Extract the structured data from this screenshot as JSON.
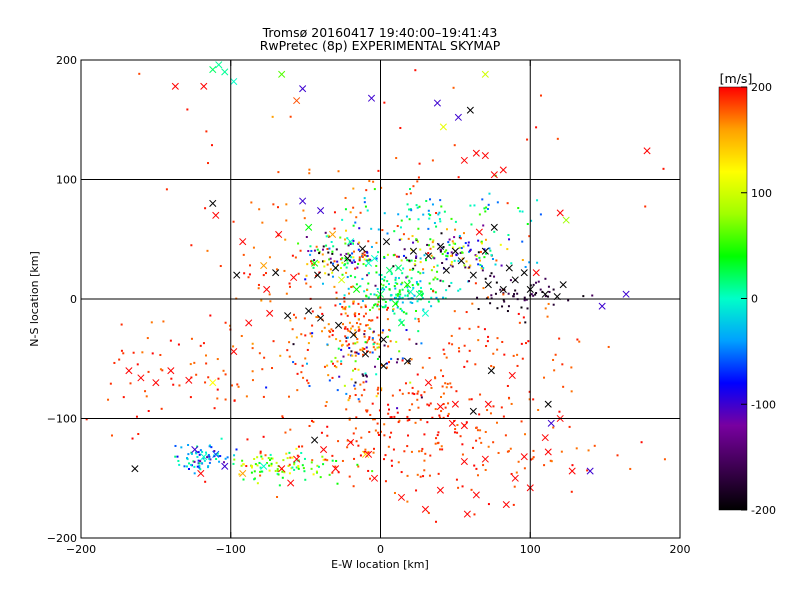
{
  "chart_data": {
    "type": "scatter",
    "title_line1": "Tromsø 20160417 19:40:00–19:41:43",
    "title_line2": "RwPretec (8p) EXPERIMENTAL SKYMAP",
    "xlabel": "E-W location [km]",
    "ylabel": "N-S location [km]",
    "xlim": [
      -200,
      200
    ],
    "ylim": [
      -200,
      200
    ],
    "xticks": [
      -200,
      -100,
      0,
      100,
      200
    ],
    "yticks": [
      -200,
      -100,
      0,
      100,
      200
    ],
    "grid": true,
    "colorbar": {
      "label": "[m/s]",
      "range": [
        -200,
        200
      ],
      "ticks": [
        200,
        100,
        0,
        -100,
        -200
      ],
      "colors": [
        "#000000",
        "#3c0050",
        "#7800a0",
        "#0000ff",
        "#00a0ff",
        "#00ffc8",
        "#00ff00",
        "#a0ff00",
        "#ffff00",
        "#ffa000",
        "#ff0000"
      ]
    },
    "series": [
      {
        "name": "velocity samples (x markers)",
        "marker": "x",
        "points": [
          [
            -137,
            178,
            200
          ],
          [
            -118,
            178,
            200
          ],
          [
            -112,
            192,
            20
          ],
          [
            -108,
            196,
            10
          ],
          [
            -104,
            190,
            10
          ],
          [
            -98,
            182,
            0
          ],
          [
            -66,
            188,
            60
          ],
          [
            -52,
            176,
            -100
          ],
          [
            -56,
            166,
            180
          ],
          [
            -6,
            168,
            -100
          ],
          [
            38,
            164,
            -100
          ],
          [
            52,
            152,
            -100
          ],
          [
            60,
            158,
            -200
          ],
          [
            70,
            188,
            100
          ],
          [
            42,
            144,
            110
          ],
          [
            56,
            116,
            200
          ],
          [
            64,
            122,
            200
          ],
          [
            70,
            120,
            200
          ],
          [
            76,
            104,
            200
          ],
          [
            82,
            108,
            200
          ],
          [
            178,
            124,
            200
          ],
          [
            -112,
            80,
            -200
          ],
          [
            -110,
            70,
            200
          ],
          [
            -92,
            48,
            200
          ],
          [
            -78,
            28,
            160
          ],
          [
            -70,
            22,
            -200
          ],
          [
            -58,
            18,
            200
          ],
          [
            -42,
            20,
            -200
          ],
          [
            -30,
            26,
            -200
          ],
          [
            -22,
            34,
            -200
          ],
          [
            -12,
            42,
            -200
          ],
          [
            4,
            48,
            -200
          ],
          [
            22,
            40,
            -200
          ],
          [
            32,
            36,
            -200
          ],
          [
            40,
            44,
            -200
          ],
          [
            54,
            32,
            -200
          ],
          [
            62,
            20,
            -200
          ],
          [
            72,
            12,
            -200
          ],
          [
            82,
            8,
            -200
          ],
          [
            90,
            16,
            -200
          ],
          [
            100,
            8,
            -200
          ],
          [
            110,
            4,
            -200
          ],
          [
            118,
            2,
            -200
          ],
          [
            122,
            12,
            -200
          ],
          [
            148,
            -6,
            -100
          ],
          [
            164,
            4,
            -100
          ],
          [
            124,
            66,
            80
          ],
          [
            120,
            72,
            200
          ],
          [
            -68,
            54,
            200
          ],
          [
            -48,
            60,
            40
          ],
          [
            -40,
            74,
            -100
          ],
          [
            -52,
            82,
            -100
          ],
          [
            -32,
            54,
            160
          ],
          [
            -20,
            48,
            0
          ],
          [
            -8,
            30,
            0
          ],
          [
            6,
            24,
            20
          ],
          [
            18,
            12,
            40
          ],
          [
            26,
            4,
            20
          ],
          [
            30,
            -12,
            0
          ],
          [
            14,
            -20,
            20
          ],
          [
            2,
            -34,
            -200
          ],
          [
            -10,
            -46,
            -200
          ],
          [
            -18,
            -30,
            -200
          ],
          [
            -28,
            -22,
            -200
          ],
          [
            -40,
            -16,
            -200
          ],
          [
            -48,
            -10,
            -200
          ],
          [
            -62,
            -14,
            -200
          ],
          [
            -74,
            -12,
            200
          ],
          [
            -88,
            -20,
            200
          ],
          [
            -98,
            -44,
            200
          ],
          [
            -112,
            -70,
            120
          ],
          [
            -128,
            -68,
            200
          ],
          [
            -140,
            -60,
            200
          ],
          [
            -168,
            -60,
            200
          ],
          [
            -160,
            -66,
            200
          ],
          [
            -150,
            -70,
            200
          ],
          [
            2,
            -56,
            -200
          ],
          [
            18,
            -52,
            -200
          ],
          [
            32,
            -70,
            200
          ],
          [
            40,
            -90,
            200
          ],
          [
            50,
            -88,
            200
          ],
          [
            62,
            -94,
            -200
          ],
          [
            56,
            -106,
            200
          ],
          [
            72,
            -88,
            200
          ],
          [
            74,
            -60,
            -200
          ],
          [
            88,
            -64,
            200
          ],
          [
            112,
            -88,
            -200
          ],
          [
            114,
            -104,
            -100
          ],
          [
            120,
            -100,
            200
          ],
          [
            112,
            -128,
            200
          ],
          [
            128,
            -144,
            200
          ],
          [
            140,
            -144,
            -100
          ],
          [
            96,
            -132,
            200
          ],
          [
            90,
            -150,
            200
          ],
          [
            100,
            -158,
            200
          ],
          [
            84,
            -172,
            200
          ],
          [
            58,
            -180,
            200
          ],
          [
            40,
            -160,
            200
          ],
          [
            30,
            -176,
            200
          ],
          [
            14,
            -166,
            200
          ],
          [
            -4,
            -150,
            200
          ],
          [
            -10,
            -130,
            140
          ],
          [
            -20,
            -120,
            200
          ],
          [
            -38,
            -126,
            200
          ],
          [
            -44,
            -118,
            -200
          ],
          [
            -56,
            -134,
            200
          ],
          [
            -66,
            -142,
            200
          ],
          [
            -78,
            -140,
            0
          ],
          [
            -92,
            -146,
            160
          ],
          [
            -104,
            -140,
            -100
          ],
          [
            -110,
            -130,
            -60
          ],
          [
            -118,
            -132,
            0
          ],
          [
            -124,
            -126,
            -100
          ],
          [
            -164,
            -142,
            -200
          ],
          [
            -120,
            -146,
            200
          ],
          [
            -60,
            -154,
            200
          ],
          [
            -30,
            -142,
            200
          ],
          [
            -8,
            -130,
            200
          ],
          [
            48,
            -104,
            200
          ],
          [
            56,
            -136,
            200
          ],
          [
            70,
            -134,
            200
          ],
          [
            64,
            -164,
            200
          ],
          [
            110,
            -116,
            200
          ],
          [
            -44,
            30,
            40
          ],
          [
            -4,
            34,
            0
          ],
          [
            12,
            26,
            20
          ],
          [
            0,
            4,
            20
          ],
          [
            10,
            -4,
            40
          ],
          [
            20,
            6,
            0
          ],
          [
            -16,
            8,
            40
          ],
          [
            -26,
            16,
            100
          ],
          [
            44,
            24,
            -200
          ],
          [
            50,
            40,
            -200
          ],
          [
            70,
            40,
            -200
          ],
          [
            86,
            26,
            -200
          ],
          [
            96,
            22,
            -200
          ],
          [
            104,
            22,
            200
          ],
          [
            66,
            56,
            200
          ],
          [
            76,
            60,
            -200
          ],
          [
            -76,
            8,
            200
          ],
          [
            -96,
            20,
            -200
          ]
        ]
      },
      {
        "name": "velocity samples (dot markers)",
        "marker": "dot",
        "clusters": [
          {
            "cx": -25,
            "cy": 35,
            "sx": 14,
            "sy": 12,
            "n": 130,
            "v": [
              -200,
              200
            ]
          },
          {
            "cx": 45,
            "cy": 38,
            "sx": 20,
            "sy": 10,
            "n": 150,
            "v": [
              -200,
              200
            ]
          },
          {
            "cx": 12,
            "cy": 5,
            "sx": 16,
            "sy": 10,
            "n": 160,
            "v": [
              -40,
              60
            ]
          },
          {
            "cx": -20,
            "cy": -28,
            "sx": 15,
            "sy": 14,
            "n": 110,
            "v": [
              150,
              200
            ]
          },
          {
            "cx": -10,
            "cy": -50,
            "sx": 20,
            "sy": 16,
            "n": 80,
            "v": [
              -200,
              200
            ]
          },
          {
            "cx": 15,
            "cy": -85,
            "sx": 40,
            "sy": 25,
            "n": 140,
            "v": [
              170,
              200
            ]
          },
          {
            "cx": -120,
            "cy": -132,
            "sx": 10,
            "sy": 6,
            "n": 70,
            "v": [
              -120,
              20
            ]
          },
          {
            "cx": -65,
            "cy": -140,
            "sx": 20,
            "sy": 6,
            "n": 90,
            "v": [
              0,
              140
            ]
          },
          {
            "cx": 30,
            "cy": -130,
            "sx": 55,
            "sy": 20,
            "n": 150,
            "v": [
              170,
              200
            ]
          },
          {
            "cx": -130,
            "cy": -60,
            "sx": 40,
            "sy": 22,
            "n": 80,
            "v": [
              170,
              200
            ]
          },
          {
            "cx": 35,
            "cy": 70,
            "sx": 30,
            "sy": 10,
            "n": 70,
            "v": [
              -60,
              60
            ]
          },
          {
            "cx": 95,
            "cy": 5,
            "sx": 18,
            "sy": 8,
            "n": 60,
            "v": [
              -200,
              -150
            ]
          },
          {
            "cx": -55,
            "cy": 20,
            "sx": 30,
            "sy": 35,
            "n": 90,
            "v": [
              160,
              200
            ]
          },
          {
            "cx": 80,
            "cy": -40,
            "sx": 35,
            "sy": 30,
            "n": 70,
            "v": [
              170,
              200
            ]
          },
          {
            "cx": 0,
            "cy": 100,
            "sx": 80,
            "sy": 40,
            "n": 50,
            "v": [
              170,
              200
            ]
          }
        ]
      }
    ]
  }
}
